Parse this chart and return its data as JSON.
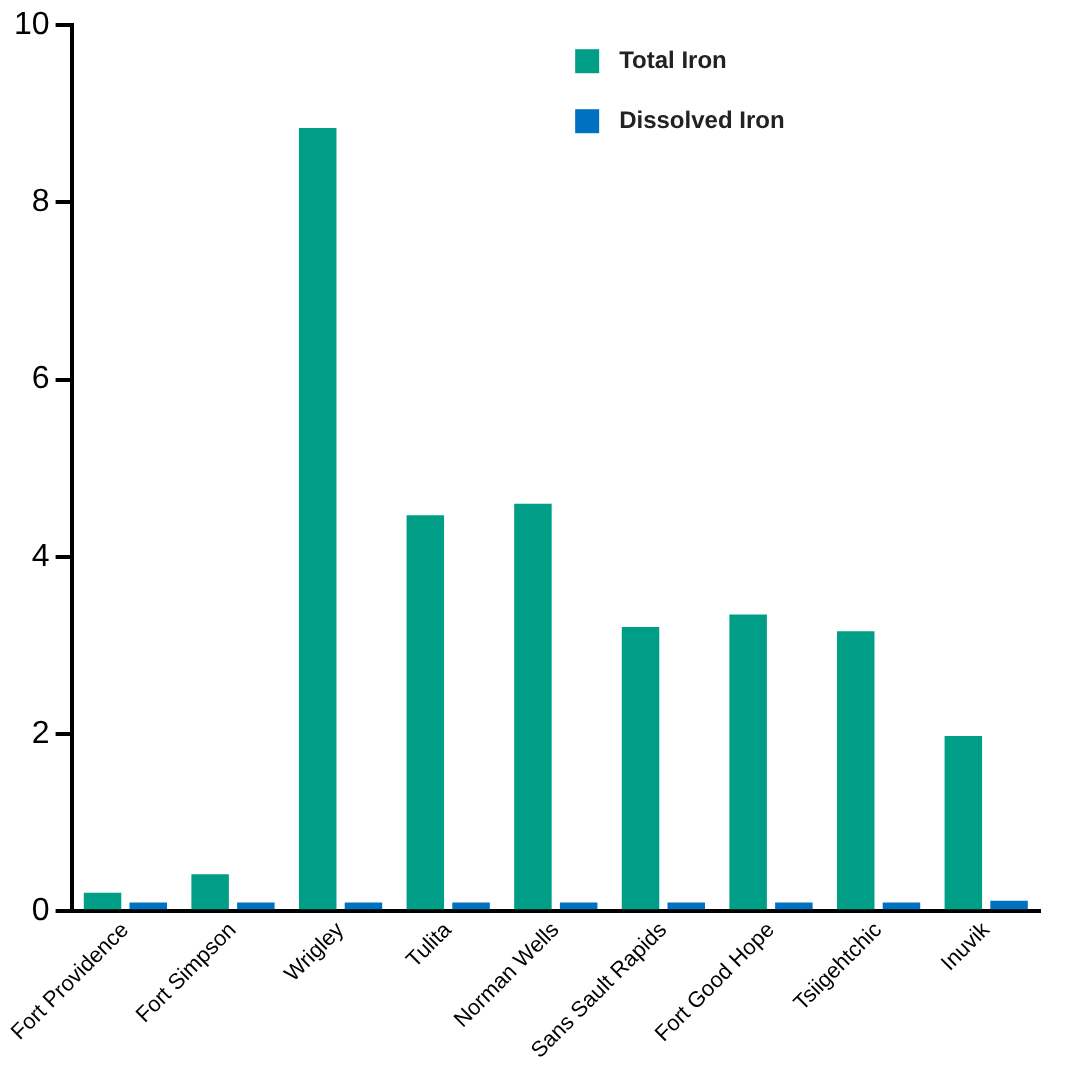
{
  "chart_data": {
    "type": "bar",
    "categories": [
      "Fort Providence",
      "Fort Simpson",
      "Wrigley",
      "Tulita",
      "Norman Wells",
      "Sans Sault Rapids",
      "Fort Good Hope",
      "Tsiigehtchic",
      "Inuvik"
    ],
    "series": [
      {
        "name": "Total Iron",
        "color": "#009e87",
        "values": [
          0.21,
          0.42,
          8.84,
          4.47,
          4.6,
          3.21,
          3.35,
          3.16,
          1.98
        ]
      },
      {
        "name": "Dissolved Iron",
        "color": "#0070c0",
        "values": [
          0.1,
          0.1,
          0.1,
          0.1,
          0.1,
          0.1,
          0.1,
          0.1,
          0.12
        ]
      }
    ],
    "ylim": [
      0,
      10
    ],
    "yticks": [
      0,
      2,
      4,
      6,
      8,
      10
    ],
    "grid": false,
    "legend": "top right"
  }
}
